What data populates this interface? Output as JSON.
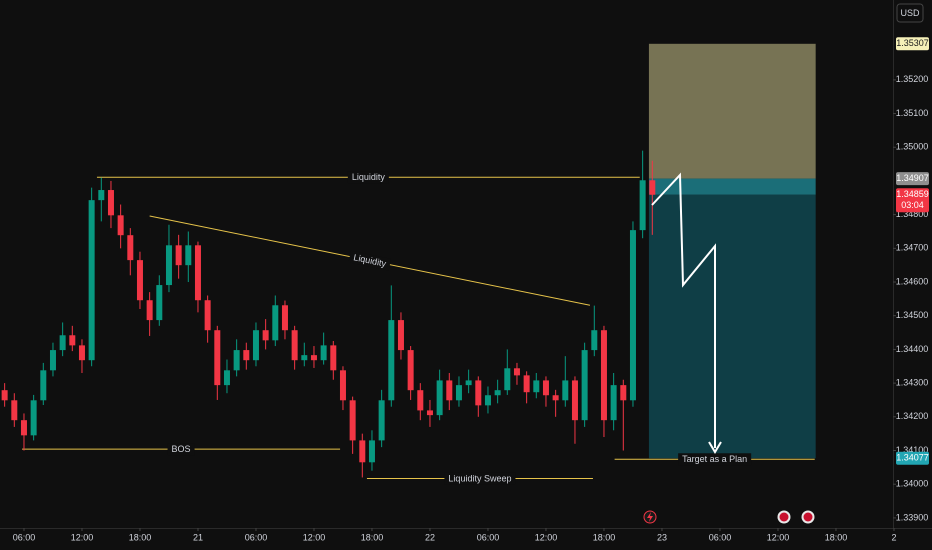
{
  "chart_data": {
    "type": "candlestick",
    "currency": "USD",
    "up_color": "#089981",
    "down_color": "#f23645",
    "xlim": [
      3.52,
      95.9
    ],
    "ylim": [
      1.3387,
      1.35437
    ],
    "xticks": [
      {
        "value": 6,
        "label": "06:00"
      },
      {
        "value": 12,
        "label": "12:00"
      },
      {
        "value": 18,
        "label": "18:00"
      },
      {
        "value": 24,
        "label": "21"
      },
      {
        "value": 30,
        "label": "06:00"
      },
      {
        "value": 36,
        "label": "12:00"
      },
      {
        "value": 42,
        "label": "18:00"
      },
      {
        "value": 48,
        "label": "22"
      },
      {
        "value": 54,
        "label": "06:00"
      },
      {
        "value": 60,
        "label": "12:00"
      },
      {
        "value": 66,
        "label": "18:00"
      },
      {
        "value": 72,
        "label": "23"
      },
      {
        "value": 78,
        "label": "06:00"
      },
      {
        "value": 84,
        "label": "12:00"
      },
      {
        "value": 90,
        "label": "18:00"
      },
      {
        "value": 96,
        "label": "2"
      }
    ],
    "yticks": [
      {
        "value": 1.339,
        "label": "1.33900"
      },
      {
        "value": 1.34,
        "label": "1.34000"
      },
      {
        "value": 1.341,
        "label": "1.34100"
      },
      {
        "value": 1.342,
        "label": "1.34200"
      },
      {
        "value": 1.343,
        "label": "1.34300"
      },
      {
        "value": 1.344,
        "label": "1.34400"
      },
      {
        "value": 1.345,
        "label": "1.34500"
      },
      {
        "value": 1.346,
        "label": "1.34600"
      },
      {
        "value": 1.347,
        "label": "1.34700"
      },
      {
        "value": 1.348,
        "label": "1.34800"
      },
      {
        "value": 1.35,
        "label": "1.35000"
      },
      {
        "value": 1.351,
        "label": "1.35100"
      },
      {
        "value": 1.352,
        "label": "1.35200"
      }
    ],
    "x": [
      4,
      5,
      6,
      7,
      8,
      9,
      10,
      11,
      12,
      13,
      14,
      15,
      16,
      17,
      18,
      19,
      20,
      21,
      22,
      23,
      24,
      25,
      26,
      27,
      28,
      29,
      30,
      31,
      32,
      33,
      34,
      35,
      36,
      37,
      38,
      39,
      40,
      41,
      42,
      43,
      44,
      45,
      46,
      47,
      48,
      49,
      50,
      51,
      52,
      53,
      54,
      55,
      56,
      57,
      58,
      59,
      60,
      61,
      62,
      63,
      64,
      65,
      66,
      67,
      68,
      69,
      70,
      71
    ],
    "candles": [
      [
        1.34279,
        1.343,
        1.3423,
        1.34249
      ],
      [
        1.34249,
        1.3427,
        1.3417,
        1.3419
      ],
      [
        1.3419,
        1.3421,
        1.341,
        1.34145
      ],
      [
        1.34145,
        1.34265,
        1.3413,
        1.34249
      ],
      [
        1.34249,
        1.3436,
        1.34235,
        1.34338
      ],
      [
        1.34338,
        1.3442,
        1.3432,
        1.34398
      ],
      [
        1.34398,
        1.3448,
        1.3438,
        1.34442
      ],
      [
        1.34442,
        1.3447,
        1.34395,
        1.34412
      ],
      [
        1.34412,
        1.3443,
        1.3433,
        1.34368
      ],
      [
        1.34368,
        1.3488,
        1.3435,
        1.34843
      ],
      [
        1.34843,
        1.3491,
        1.3478,
        1.34873
      ],
      [
        1.34873,
        1.349,
        1.3476,
        1.34798
      ],
      [
        1.34798,
        1.3483,
        1.347,
        1.34739
      ],
      [
        1.34739,
        1.3476,
        1.3462,
        1.34665
      ],
      [
        1.34665,
        1.3469,
        1.3452,
        1.34546
      ],
      [
        1.34546,
        1.3457,
        1.3444,
        1.34487
      ],
      [
        1.34487,
        1.3462,
        1.3447,
        1.34591
      ],
      [
        1.34591,
        1.3477,
        1.3457,
        1.34709
      ],
      [
        1.34709,
        1.3474,
        1.3461,
        1.3465
      ],
      [
        1.3465,
        1.3475,
        1.346,
        1.34709
      ],
      [
        1.34709,
        1.3472,
        1.3451,
        1.34546
      ],
      [
        1.34546,
        1.3456,
        1.3442,
        1.34457
      ],
      [
        1.34457,
        1.3447,
        1.3425,
        1.34294
      ],
      [
        1.34294,
        1.3437,
        1.3427,
        1.34338
      ],
      [
        1.34338,
        1.3443,
        1.3432,
        1.34398
      ],
      [
        1.34398,
        1.3442,
        1.3434,
        1.34368
      ],
      [
        1.34368,
        1.3448,
        1.3435,
        1.34457
      ],
      [
        1.34457,
        1.3449,
        1.344,
        1.34427
      ],
      [
        1.34427,
        1.3456,
        1.3441,
        1.34531
      ],
      [
        1.34531,
        1.34545,
        1.3443,
        1.34457
      ],
      [
        1.34457,
        1.3447,
        1.3434,
        1.34368
      ],
      [
        1.34368,
        1.3442,
        1.3435,
        1.34383
      ],
      [
        1.34383,
        1.3441,
        1.34345,
        1.34368
      ],
      [
        1.34368,
        1.3445,
        1.34355,
        1.34412
      ],
      [
        1.34412,
        1.34425,
        1.3431,
        1.34338
      ],
      [
        1.34338,
        1.3435,
        1.3422,
        1.34249
      ],
      [
        1.34249,
        1.3426,
        1.3409,
        1.3413
      ],
      [
        1.3413,
        1.3415,
        1.3402,
        1.34065
      ],
      [
        1.34065,
        1.3416,
        1.3404,
        1.3413
      ],
      [
        1.3413,
        1.3428,
        1.3411,
        1.34249
      ],
      [
        1.34249,
        1.3459,
        1.3423,
        1.34487
      ],
      [
        1.34487,
        1.3451,
        1.3437,
        1.34398
      ],
      [
        1.34398,
        1.3441,
        1.3425,
        1.34279
      ],
      [
        1.34279,
        1.343,
        1.3419,
        1.34219
      ],
      [
        1.34219,
        1.3425,
        1.3417,
        1.34205
      ],
      [
        1.34205,
        1.3434,
        1.3419,
        1.34308
      ],
      [
        1.34308,
        1.3433,
        1.3422,
        1.34249
      ],
      [
        1.34249,
        1.3432,
        1.3423,
        1.34294
      ],
      [
        1.34294,
        1.3434,
        1.3427,
        1.34308
      ],
      [
        1.34308,
        1.3432,
        1.342,
        1.34234
      ],
      [
        1.34234,
        1.3429,
        1.3421,
        1.34264
      ],
      [
        1.34264,
        1.3431,
        1.3424,
        1.34279
      ],
      [
        1.34279,
        1.344,
        1.34265,
        1.34344
      ],
      [
        1.34344,
        1.3436,
        1.34295,
        1.34323
      ],
      [
        1.34323,
        1.34335,
        1.3424,
        1.34273
      ],
      [
        1.34273,
        1.3433,
        1.34255,
        1.34308
      ],
      [
        1.34308,
        1.3432,
        1.3423,
        1.34264
      ],
      [
        1.34264,
        1.3428,
        1.342,
        1.34249
      ],
      [
        1.34249,
        1.3438,
        1.3423,
        1.34308
      ],
      [
        1.34308,
        1.3432,
        1.3412,
        1.3419
      ],
      [
        1.3419,
        1.3442,
        1.3417,
        1.34398
      ],
      [
        1.34398,
        1.3453,
        1.3438,
        1.34457
      ],
      [
        1.34457,
        1.3447,
        1.3414,
        1.3419
      ],
      [
        1.3419,
        1.3433,
        1.3416,
        1.34294
      ],
      [
        1.34294,
        1.3431,
        1.341,
        1.34249
      ],
      [
        1.34249,
        1.3478,
        1.3423,
        1.34754
      ],
      [
        1.34754,
        1.3499,
        1.3473,
        1.34902
      ],
      [
        1.34902,
        1.3496,
        1.3474,
        1.34859
      ]
    ],
    "annotations": [
      {
        "label": "Liquidity",
        "x": [
          13.55,
          69.7
        ],
        "y": [
          1.34911,
          1.34911
        ]
      },
      {
        "label": "Liquidity",
        "x": [
          19.0,
          64.55
        ],
        "y": [
          1.34796,
          1.34531
        ]
      },
      {
        "label": "BOS",
        "x": [
          5.8,
          38.7
        ],
        "y": [
          1.34104,
          1.34104
        ]
      },
      {
        "label": "Liquidity Sweep",
        "x": [
          41.48,
          64.86
        ],
        "y": [
          1.34017,
          1.34017
        ]
      },
      {
        "label": "Target as a Plan",
        "x": [
          67.1,
          87.8
        ],
        "y": [
          1.34074,
          1.34074
        ]
      }
    ],
    "position": {
      "x": [
        70.65,
        87.9
      ],
      "stop": 1.35307,
      "entry": 1.34907,
      "target": 1.34077
    },
    "last_price": 1.34859,
    "countdown": "03:04"
  }
}
